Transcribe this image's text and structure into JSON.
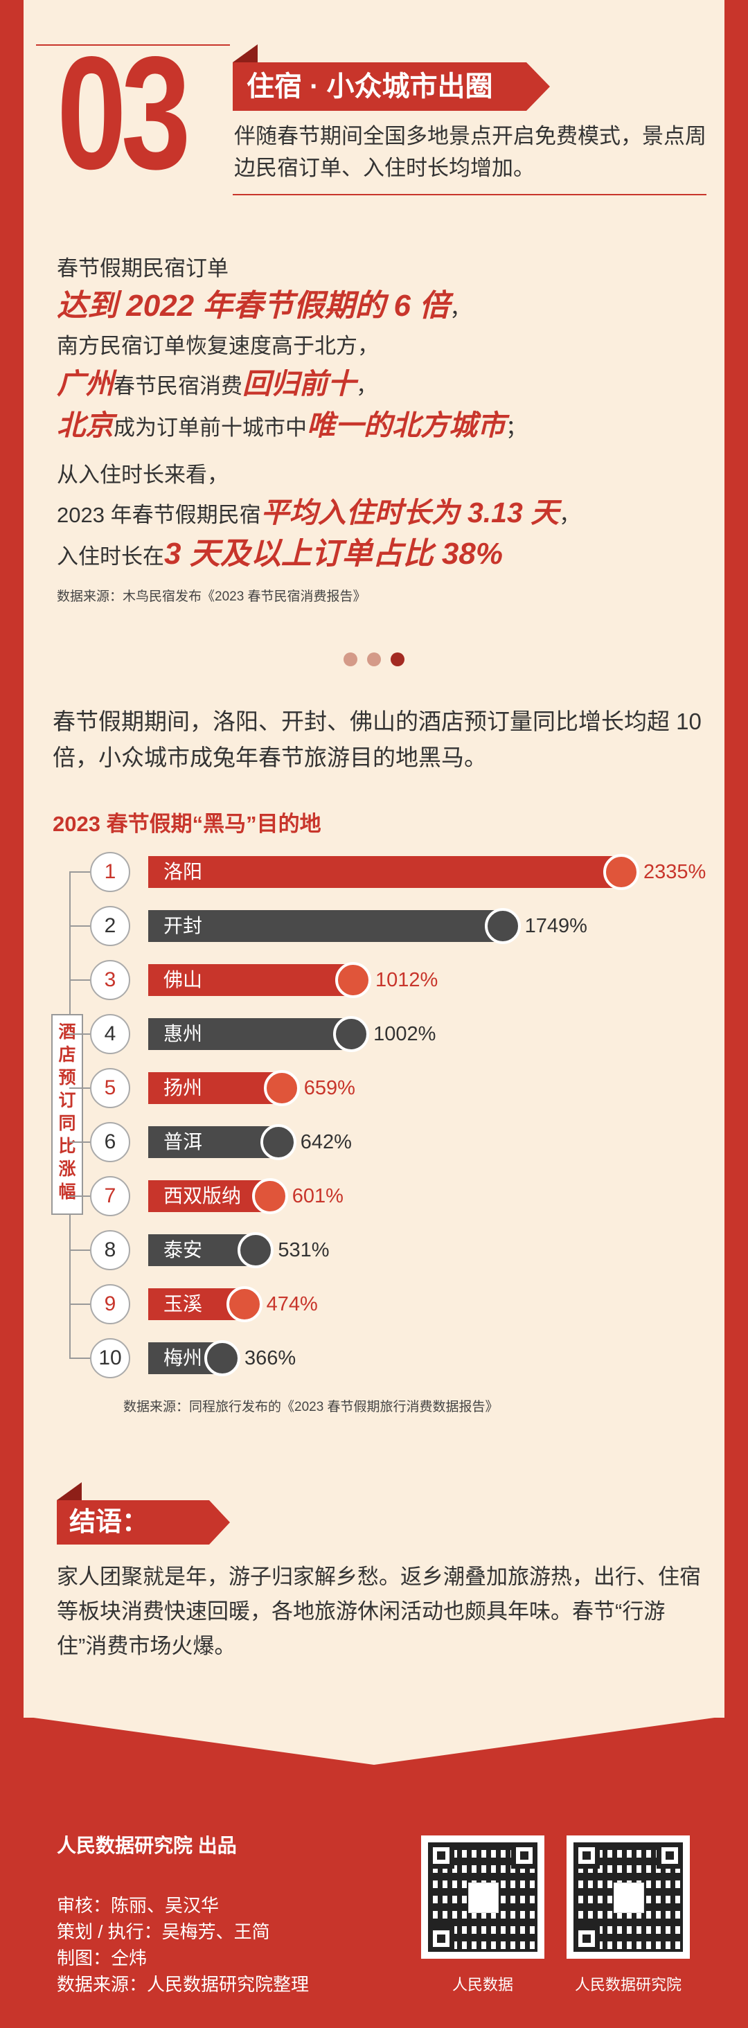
{
  "section": {
    "number": "03",
    "title": "住宿 · 小众城市出圈",
    "intro": "伴随春节期间全国多地景点开启免费模式，景点周边民宿订单、入住时长均增加。"
  },
  "highlights": {
    "l1": "春节假期民宿订单",
    "l2": "达到 2022 年春节假期的 6 倍",
    "l2_tail": "，",
    "l3": "南方民宿订单恢复速度高于北方，",
    "l4a": "广州",
    "l4b": "春节民宿消费",
    "l4c": "回归前十",
    "l4d": "，",
    "l5a": "北京",
    "l5b": "成为订单前十城市中",
    "l5c": "唯一的北方城市",
    "l5d": "；",
    "l6": "从入住时长来看，",
    "l7a": "2023 年春节假期民宿",
    "l7b": "平均入住时长为 3.13 天",
    "l7c": "，",
    "l8a": "入住时长在",
    "l8b": "3 天及以上订单占比 38%",
    "source": "数据来源：木鸟民宿发布《2023 春节民宿消费报告》"
  },
  "colors": {
    "red": "#c8352b",
    "dark": "#4a4a4a",
    "accent": "#e0553a",
    "cream": "#fbeedd"
  },
  "paragraph": "春节假期期间，洛阳、开封、佛山的酒店预订量同比增长均超 10 倍，小众城市成兔年春节旅游目的地黑马。",
  "chart_data": {
    "type": "bar",
    "orientation": "horizontal",
    "title": "2023 春节假期“黑马”目的地",
    "ylabel": "酒店预订同比涨幅",
    "ranks": [
      "1",
      "2",
      "3",
      "4",
      "5",
      "6",
      "7",
      "8",
      "9",
      "10"
    ],
    "categories": [
      "洛阳",
      "开封",
      "佛山",
      "惠州",
      "扬州",
      "普洱",
      "西双版纳",
      "泰安",
      "玉溪",
      "梅州"
    ],
    "values": [
      2335,
      1749,
      1012,
      1002,
      659,
      642,
      601,
      531,
      474,
      366
    ],
    "value_labels": [
      "2335%",
      "1749%",
      "1012%",
      "1002%",
      "659%",
      "642%",
      "601%",
      "531%",
      "474%",
      "366%"
    ],
    "unit": "%",
    "bar_colors": [
      "#c8352b",
      "#4a4a4a",
      "#c8352b",
      "#4a4a4a",
      "#c8352b",
      "#4a4a4a",
      "#c8352b",
      "#4a4a4a",
      "#c8352b",
      "#4a4a4a"
    ],
    "source": "数据来源：同程旅行发布的《2023 春节假期旅行消费数据报告》"
  },
  "conclusion": {
    "title": "结语：",
    "text": "家人团聚就是年，游子归家解乡愁。返乡潮叠加旅游热，出行、住宿等板块消费快速回暖，各地旅游休闲活动也颇具年味。春节“行游住”消费市场火爆。"
  },
  "footer": {
    "producer": "人民数据研究院  出品",
    "review": "审核：陈丽、吴汉华",
    "plan": "策划 / 执行：吴梅芳、王简",
    "design": "制图：仝炜",
    "data": "数据来源：人民数据研究院整理",
    "qr1": "人民数据",
    "qr2": "人民数据研究院"
  }
}
